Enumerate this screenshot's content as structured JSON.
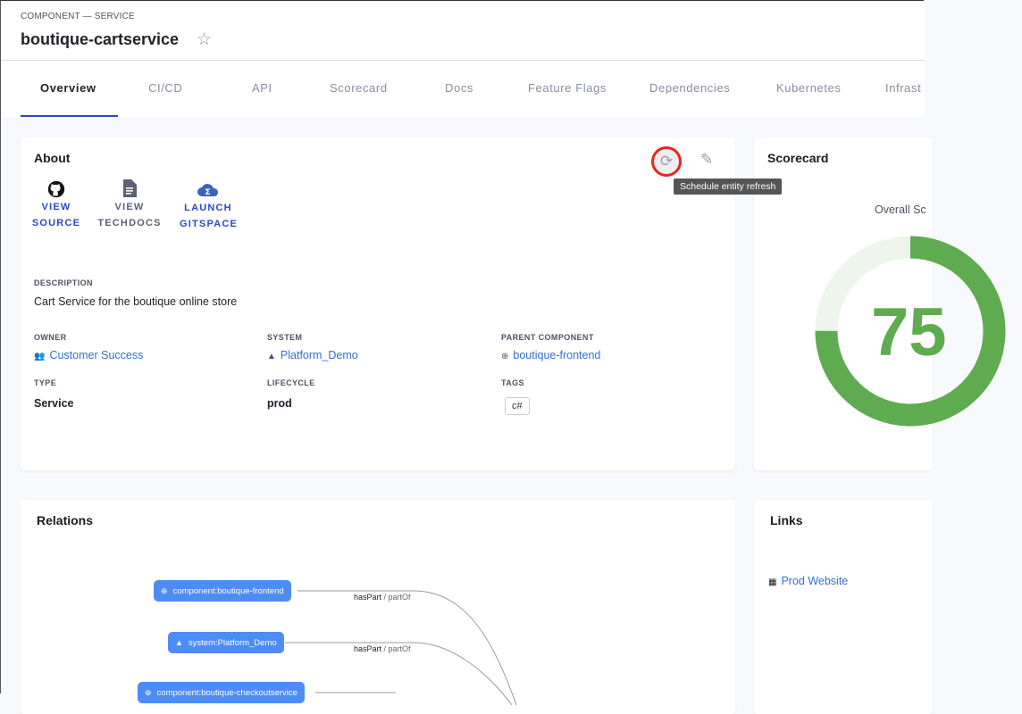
{
  "header": {
    "kind": "COMPONENT — SERVICE",
    "title": "boutique-cartservice",
    "favorite_icon": "star-outline-icon"
  },
  "tabs": [
    {
      "label": "Overview",
      "active": true
    },
    {
      "label": "CI/CD"
    },
    {
      "label": "API"
    },
    {
      "label": "Scorecard"
    },
    {
      "label": "Docs"
    },
    {
      "label": "Feature Flags"
    },
    {
      "label": "Dependencies"
    },
    {
      "label": "Kubernetes"
    },
    {
      "label": "Infrast"
    }
  ],
  "about": {
    "title": "About",
    "actions": [
      {
        "line1": "VIEW",
        "line2": "SOURCE",
        "icon": "github-icon"
      },
      {
        "line1": "VIEW",
        "line2": "TECHDOCS",
        "icon": "document-icon"
      },
      {
        "line1": "LAUNCH",
        "line2": "GITSPACE",
        "icon": "cloud-icon"
      }
    ],
    "refresh_tooltip": "Schedule entity refresh",
    "description_label": "DESCRIPTION",
    "description": "Cart Service for the boutique online store",
    "owner_label": "OWNER",
    "owner": "Customer Success",
    "system_label": "SYSTEM",
    "system": "Platform_Demo",
    "parent_label": "PARENT COMPONENT",
    "parent": "boutique-frontend",
    "type_label": "TYPE",
    "type": "Service",
    "lifecycle_label": "LIFECYCLE",
    "lifecycle": "prod",
    "tags_label": "TAGS",
    "tags": [
      "c#"
    ]
  },
  "scorecard": {
    "title": "Scorecard",
    "overall_label": "Overall Sc",
    "score": "75",
    "score_value": 75,
    "color": "#5fab4f",
    "track_color": "#edf5ec"
  },
  "relations": {
    "title": "Relations",
    "nodes": [
      "component:boutique-frontend",
      "system:Platform_Demo",
      "component:boutique-checkoutservice"
    ],
    "edges": [
      {
        "rel": "hasPart",
        "sep": " / ",
        "inverse": "partOf"
      },
      {
        "rel": "hasPart",
        "sep": " / ",
        "inverse": "partOf"
      }
    ]
  },
  "links": {
    "title": "Links",
    "items": [
      {
        "label": "Prod Website",
        "icon": "dashboard-icon"
      }
    ]
  }
}
